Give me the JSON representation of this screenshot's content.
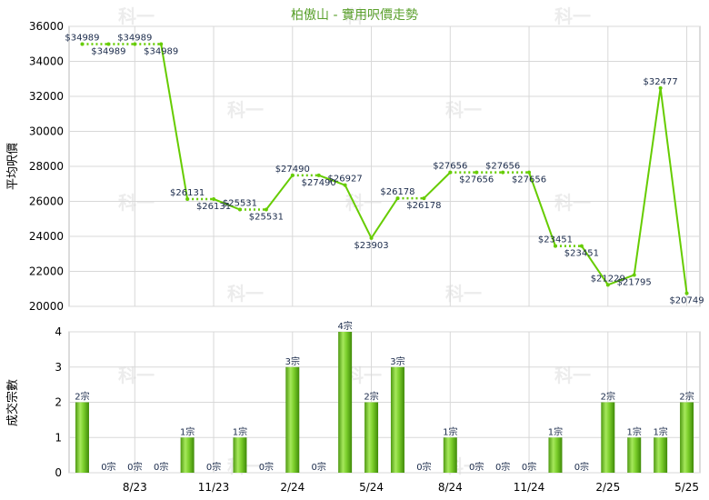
{
  "chart_data": [
    {
      "type": "line",
      "title": "柏傲山 - 實用呎價走勢",
      "ylabel": "平均呎價",
      "ylim": [
        20000,
        36000
      ],
      "yticks": [
        20000,
        22000,
        24000,
        26000,
        28000,
        30000,
        32000,
        34000,
        36000
      ],
      "xtick_labels": [
        "8/23",
        "11/23",
        "2/24",
        "5/24",
        "8/24",
        "11/24",
        "2/25",
        "5/25"
      ],
      "grid": true,
      "line_color": "#66cc00",
      "point_labels": [
        "$34989",
        "$34989",
        "$34989",
        "$34989",
        "$26131",
        "$26131",
        "$25531",
        "$25531",
        "$27490",
        "$27490",
        "$26927",
        "$23903",
        "$26178",
        "$26178",
        "$27656",
        "$27656",
        "$27656",
        "$27656",
        "$23451",
        "$23451",
        "$21229",
        "$21795",
        "$32477",
        "$20749"
      ],
      "values": [
        34989,
        34989,
        34989,
        34989,
        26131,
        26131,
        25531,
        25531,
        27490,
        27490,
        26927,
        23903,
        26178,
        26178,
        27656,
        27656,
        27656,
        27656,
        23451,
        23451,
        21229,
        21795,
        32477,
        20749
      ]
    },
    {
      "type": "bar",
      "ylabel": "成交宗數",
      "ylim": [
        0,
        4
      ],
      "yticks": [
        0,
        1,
        2,
        3,
        4
      ],
      "xtick_labels": [
        "8/23",
        "11/23",
        "2/24",
        "5/24",
        "8/24",
        "11/24",
        "2/25",
        "5/25"
      ],
      "bar_color": "#66cc00",
      "values": [
        2,
        0,
        0,
        0,
        1,
        0,
        1,
        0,
        3,
        0,
        4,
        2,
        3,
        0,
        1,
        0,
        0,
        0,
        1,
        0,
        2,
        1,
        1,
        2
      ],
      "bar_labels": [
        "2宗",
        "0宗",
        "0宗",
        "0宗",
        "1宗",
        "0宗",
        "1宗",
        "0宗",
        "3宗",
        "0宗",
        "4宗",
        "2宗",
        "3宗",
        "0宗",
        "1宗",
        "0宗",
        "0宗",
        "0宗",
        "1宗",
        "0宗",
        "2宗",
        "1宗",
        "1宗",
        "2宗"
      ]
    }
  ],
  "watermark": "科一"
}
